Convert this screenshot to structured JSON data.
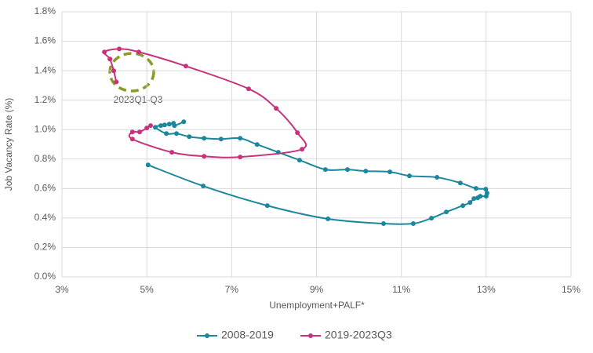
{
  "chart_data": {
    "type": "line",
    "x_label": "Unemployment+PALF*",
    "y_label": "Job Vacancy Rate (%)",
    "annotation": "2023Q1-Q3",
    "xlim": [
      3,
      15
    ],
    "xticks": [
      {
        "value": 3,
        "label": "3%"
      },
      {
        "value": 5,
        "label": "5%"
      },
      {
        "value": 7,
        "label": "7%"
      },
      {
        "value": 9,
        "label": "9%"
      },
      {
        "value": 11,
        "label": "11%"
      },
      {
        "value": 13,
        "label": "13%"
      },
      {
        "value": 15,
        "label": "15%"
      }
    ],
    "ylim": [
      0,
      1.8
    ],
    "yticks": [
      {
        "value": 0,
        "label": "0.0%"
      },
      {
        "value": 0.2,
        "label": "0.2%"
      },
      {
        "value": 0.4,
        "label": "0.4%"
      },
      {
        "value": 0.6,
        "label": "0.6%"
      },
      {
        "value": 0.8,
        "label": "0.8%"
      },
      {
        "value": 1.0,
        "label": "1.0%"
      },
      {
        "value": 1.2,
        "label": "1.2%"
      },
      {
        "value": 1.4,
        "label": "1.4%"
      },
      {
        "value": 1.6,
        "label": "1.6%"
      },
      {
        "value": 1.8,
        "label": "1.8%"
      }
    ],
    "grid": true,
    "legend": "bottom",
    "series": [
      {
        "name": "2008-2019",
        "color": "#1a879c",
        "x": [
          5.03,
          6.33,
          7.84,
          9.27,
          10.58,
          11.28,
          11.71,
          12.06,
          12.45,
          12.62,
          12.71,
          12.8,
          12.86,
          13.0,
          13.02,
          12.99,
          12.76,
          12.39,
          11.84,
          11.19,
          10.73,
          10.16,
          9.73,
          9.21,
          8.6,
          8.1,
          7.6,
          7.2,
          6.75,
          6.35,
          6.0,
          5.7,
          5.46,
          5.2,
          5.33,
          5.42,
          5.53,
          5.63,
          5.65,
          5.87
        ],
        "values": [
          0.76,
          0.617,
          0.484,
          0.394,
          0.362,
          0.362,
          0.399,
          0.441,
          0.484,
          0.505,
          0.532,
          0.537,
          0.548,
          0.548,
          0.569,
          0.596,
          0.601,
          0.638,
          0.676,
          0.686,
          0.713,
          0.718,
          0.729,
          0.729,
          0.793,
          0.846,
          0.899,
          0.941,
          0.936,
          0.941,
          0.952,
          0.973,
          0.973,
          1.016,
          1.027,
          1.032,
          1.037,
          1.043,
          1.027,
          1.053
        ]
      },
      {
        "name": "2019-2023Q3",
        "color": "#c8317b",
        "x": [
          5.09,
          5.0,
          4.83,
          4.66,
          4.66,
          5.59,
          6.35,
          7.2,
          8.66,
          8.55,
          8.05,
          7.4,
          5.92,
          4.81,
          4.35,
          4.0,
          4.13,
          4.22,
          4.28
        ],
        "values": [
          1.027,
          1.011,
          0.984,
          0.984,
          0.936,
          0.846,
          0.819,
          0.814,
          0.867,
          0.979,
          1.144,
          1.277,
          1.431,
          1.527,
          1.548,
          1.527,
          1.479,
          1.399,
          1.324
        ]
      }
    ]
  }
}
